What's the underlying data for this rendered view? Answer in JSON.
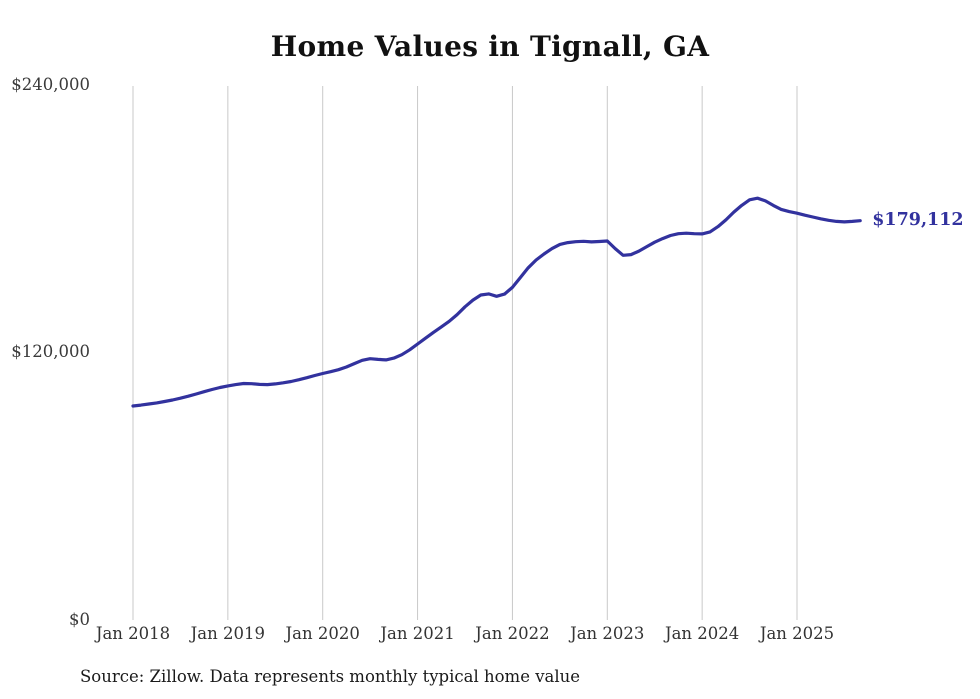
{
  "title": "Home Values in Tignall, GA",
  "source": "Source: Zillow. Data represents monthly typical home value",
  "chart_data": {
    "type": "line",
    "title": "Home Values in Tignall, GA",
    "series_name": "Monthly typical home value",
    "x_start": "Jan 2018",
    "x_end": "Sep 2025",
    "x_tick_labels": [
      "Jan 2018",
      "Jan 2019",
      "Jan 2020",
      "Jan 2021",
      "Jan 2022",
      "Jan 2023",
      "Jan 2024",
      "Jan 2025"
    ],
    "ytick_labels": [
      "$240,000",
      "$120,000",
      "$0"
    ],
    "ylabel": "",
    "xlabel": "",
    "ylim": [
      0,
      240000
    ],
    "grid": "vertical-only",
    "grid_color": "#c9c9c9",
    "line_color": "#32329e",
    "end_label": "$179,112",
    "end_value": 179112,
    "values": [
      96000,
      96400,
      96900,
      97400,
      98000,
      98700,
      99500,
      100400,
      101400,
      102400,
      103400,
      104300,
      105000,
      105600,
      106100,
      106000,
      105700,
      105600,
      105900,
      106400,
      107000,
      107800,
      108700,
      109700,
      110600,
      111400,
      112300,
      113500,
      115000,
      116500,
      117200,
      116900,
      116700,
      117500,
      119000,
      121200,
      123800,
      126400,
      129000,
      131500,
      134000,
      137000,
      140500,
      143500,
      145800,
      146300,
      145200,
      146200,
      149200,
      153600,
      158000,
      161500,
      164200,
      166600,
      168500,
      169300,
      169700,
      169900,
      169600,
      169800,
      170000,
      166600,
      163600,
      163900,
      165500,
      167500,
      169500,
      171100,
      172500,
      173300,
      173500,
      173300,
      173200,
      174100,
      176500,
      179500,
      183000,
      186000,
      188500,
      189200,
      188000,
      186000,
      184200,
      183200,
      182500,
      181600,
      180800,
      180000,
      179300,
      178800,
      178600,
      178800,
      179112
    ]
  }
}
